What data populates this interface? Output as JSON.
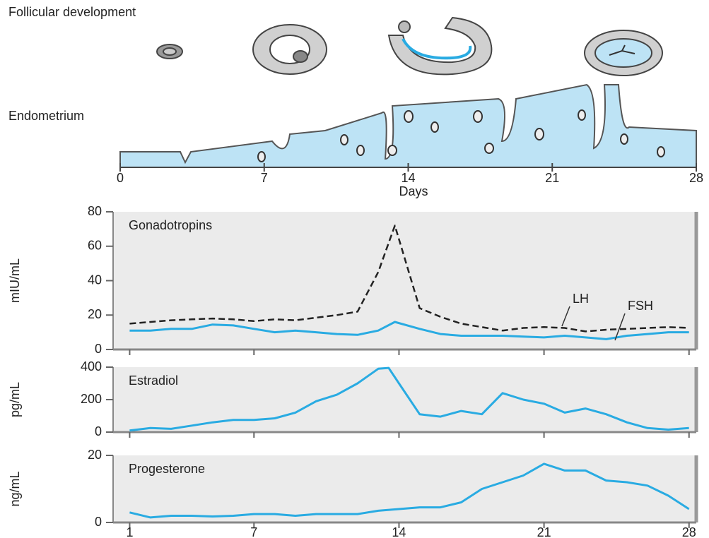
{
  "diagram": {
    "follicular_title": "Follicular development",
    "endometrium_title": "Endometrium",
    "xticks": [
      0,
      7,
      14,
      21,
      28
    ],
    "xlabel": "Days"
  },
  "chart_data": [
    {
      "type": "line",
      "title": "Gonadotropins",
      "ylabel": "mIU/mL",
      "xlim": [
        0.2,
        28.35
      ],
      "ylim": [
        0,
        80
      ],
      "yticks": [
        0,
        20,
        40,
        60,
        80
      ],
      "x": [
        1,
        2,
        3,
        4,
        5,
        6,
        7,
        8,
        9,
        10,
        11,
        12,
        13,
        13.8,
        15,
        16,
        17,
        18,
        19,
        20,
        21,
        22,
        23,
        24,
        25,
        26,
        27,
        28
      ],
      "series": [
        {
          "name": "LH",
          "color": "#222222",
          "style": "dashed",
          "values": [
            15,
            16,
            17,
            17.5,
            18,
            17.5,
            16.5,
            17.5,
            17,
            18.5,
            20,
            22,
            45,
            72,
            24,
            19,
            15,
            13,
            11,
            12.5,
            13,
            12.5,
            10.5,
            11.5,
            12,
            12.5,
            13,
            12.5
          ]
        },
        {
          "name": "FSH",
          "color": "#29abe2",
          "style": "solid",
          "values": [
            11,
            11,
            12,
            12,
            14.5,
            14,
            12,
            10,
            11,
            10,
            9,
            8.5,
            11,
            16,
            12,
            9,
            8,
            8,
            8,
            7.5,
            7,
            8,
            7,
            6,
            8,
            9,
            10,
            10
          ]
        }
      ]
    },
    {
      "type": "line",
      "title": "Estradiol",
      "ylabel": "pg/mL",
      "xlim": [
        0.2,
        28.35
      ],
      "ylim": [
        0,
        400
      ],
      "yticks": [
        0,
        200,
        400
      ],
      "x": [
        1,
        2,
        3,
        4,
        5,
        6,
        7,
        8,
        9,
        10,
        11,
        12,
        13,
        13.5,
        14,
        15,
        16,
        17,
        18,
        19,
        20,
        21,
        22,
        23,
        24,
        25,
        26,
        27,
        28
      ],
      "series": [
        {
          "name": "Estradiol",
          "color": "#29abe2",
          "style": "solid",
          "values": [
            10,
            25,
            20,
            40,
            60,
            75,
            75,
            85,
            120,
            190,
            230,
            300,
            390,
            395,
            300,
            110,
            95,
            130,
            110,
            240,
            200,
            175,
            120,
            145,
            110,
            60,
            25,
            15,
            25
          ]
        }
      ]
    },
    {
      "type": "line",
      "title": "Progesterone",
      "ylabel": "ng/mL",
      "xlim": [
        0.2,
        28.35
      ],
      "ylim": [
        0,
        20
      ],
      "yticks": [
        0,
        20
      ],
      "xticks": [
        1,
        7,
        14,
        21,
        28
      ],
      "x": [
        1,
        2,
        3,
        4,
        5,
        6,
        7,
        8,
        9,
        10,
        11,
        12,
        13,
        14,
        15,
        16,
        17,
        18,
        19,
        20,
        21,
        22,
        23,
        24,
        25,
        26,
        27,
        28
      ],
      "series": [
        {
          "name": "Progesterone",
          "color": "#29abe2",
          "style": "solid",
          "values": [
            3,
            1.5,
            2,
            2,
            1.8,
            2,
            2.5,
            2.5,
            2,
            2.5,
            2.5,
            2.5,
            3.5,
            4,
            4.5,
            4.5,
            6,
            10,
            12,
            14,
            17.5,
            15.5,
            15.5,
            12.5,
            12,
            11,
            8,
            4
          ]
        }
      ]
    }
  ]
}
